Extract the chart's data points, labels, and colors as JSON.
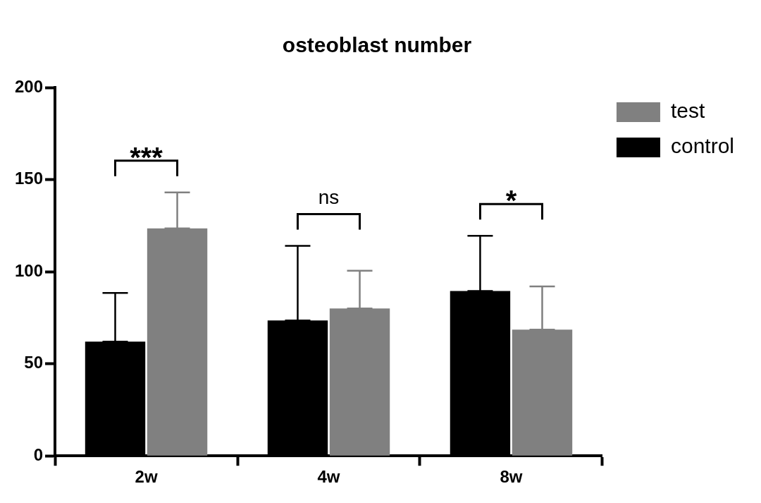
{
  "chart_data": {
    "type": "bar",
    "title": "osteoblast number",
    "categories": [
      "2w",
      "4w",
      "8w"
    ],
    "series": [
      {
        "name": "control",
        "color": "#000000",
        "values": [
          62,
          73.5,
          89.5
        ],
        "errors": [
          [
            62,
            88.5
          ],
          [
            73.5,
            114
          ],
          [
            89.5,
            119.5
          ]
        ]
      },
      {
        "name": "test",
        "color": "#808080",
        "values": [
          123.5,
          80,
          68.5
        ],
        "errors": [
          [
            123.5,
            143
          ],
          [
            80,
            100.5
          ],
          [
            68.5,
            92
          ]
        ]
      }
    ],
    "ylim": [
      0,
      200
    ],
    "yticks": [
      0,
      50,
      100,
      150,
      200
    ],
    "grid": false,
    "legend": "top right",
    "annotations": [
      "***",
      "ns",
      "*"
    ]
  }
}
